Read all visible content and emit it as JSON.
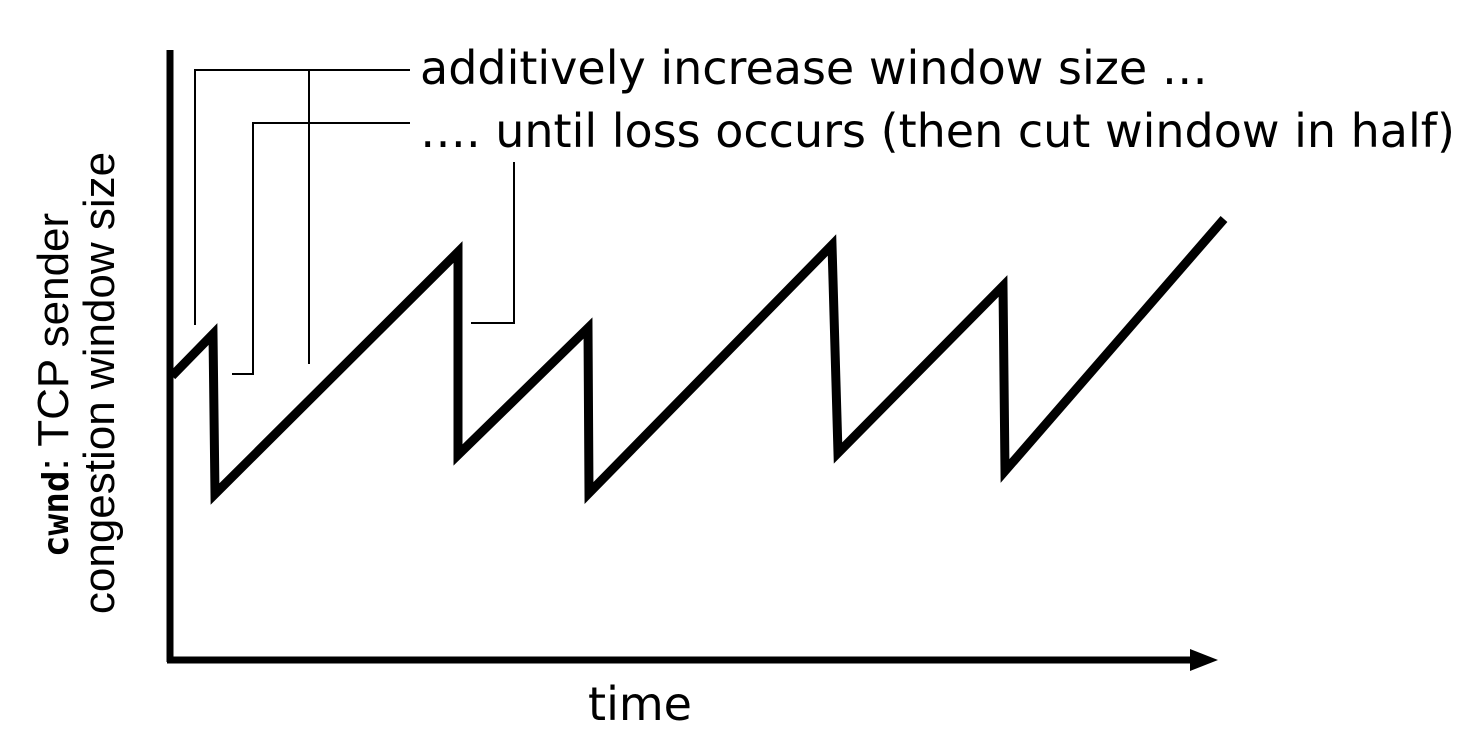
{
  "diagram": {
    "annotation_increase": "additively increase window size …",
    "annotation_loss": "…. until loss occurs (then cut window in half)",
    "y_axis_label_code": "cwnd",
    "y_axis_label_rest": ": TCP sender",
    "y_axis_label_line2": "congestion window size",
    "x_axis_label": "time",
    "stroke_color": "#000000",
    "background_color": "#ffffff"
  }
}
